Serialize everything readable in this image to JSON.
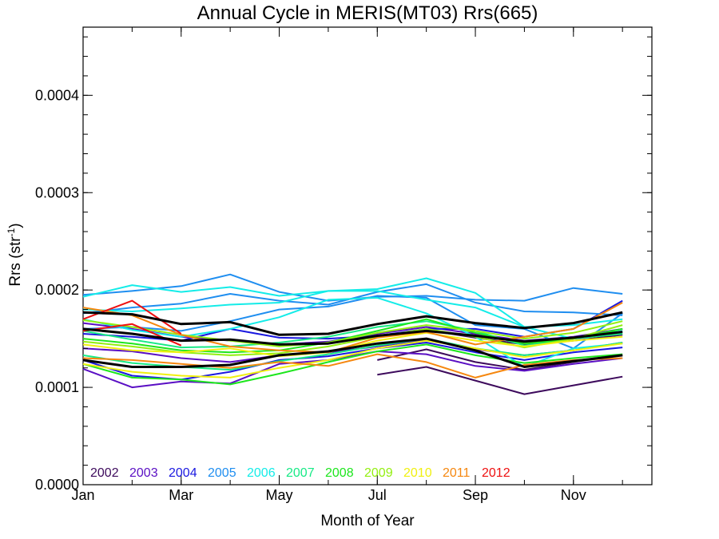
{
  "chart_data": {
    "type": "line",
    "title": "Annual Cycle in MERIS(MT03) Rrs(665)",
    "xlabel": "Month of Year",
    "ylabel": "Rrs (str",
    "ylabel_sup": "-1",
    "ylabel_end": ")",
    "xlim": [
      1,
      12.6
    ],
    "ylim": [
      0,
      0.00047
    ],
    "x_ticks": [
      {
        "value": 1,
        "label": "Jan"
      },
      {
        "value": 3,
        "label": "Mar"
      },
      {
        "value": 5,
        "label": "May"
      },
      {
        "value": 7,
        "label": "Jul"
      },
      {
        "value": 9,
        "label": "Sep"
      },
      {
        "value": 11,
        "label": "Nov"
      }
    ],
    "y_ticks": [
      {
        "value": 0.0,
        "label": "0.0000"
      },
      {
        "value": 0.0001,
        "label": "0.0001"
      },
      {
        "value": 0.0002,
        "label": "0.0002"
      },
      {
        "value": 0.0003,
        "label": "0.0003"
      },
      {
        "value": 0.0004,
        "label": "0.0004"
      }
    ],
    "x": [
      1,
      2,
      3,
      4,
      5,
      6,
      7,
      8,
      9,
      10,
      11,
      12
    ],
    "grid": false,
    "legend_position": "bottom-left",
    "legend": [
      {
        "label": "2002",
        "color": "#3d0a5c"
      },
      {
        "label": "2003",
        "color": "#5a0fc4"
      },
      {
        "label": "2004",
        "color": "#1a18e0"
      },
      {
        "label": "2005",
        "color": "#1f8ef0"
      },
      {
        "label": "2006",
        "color": "#14ece8"
      },
      {
        "label": "2007",
        "color": "#17ea86"
      },
      {
        "label": "2008",
        "color": "#1de61d"
      },
      {
        "label": "2009",
        "color": "#93ef10"
      },
      {
        "label": "2010",
        "color": "#f0f010"
      },
      {
        "label": "2011",
        "color": "#f5870f"
      },
      {
        "label": "2012",
        "color": "#ee1010"
      }
    ],
    "series": [
      {
        "color": "#3d0a5c",
        "values": [
          null,
          null,
          null,
          null,
          null,
          null,
          0.000113,
          0.000121,
          0.000107,
          9.3e-05,
          0.000102,
          0.000111
        ]
      },
      {
        "color": "#3d0a5c",
        "values": [
          null,
          null,
          null,
          null,
          null,
          null,
          0.000128,
          0.000139,
          0.000126,
          0.000118,
          0.000126,
          0.000133
        ]
      },
      {
        "color": "#3d0a5c",
        "values": [
          null,
          null,
          null,
          null,
          null,
          null,
          0.000152,
          0.000159,
          0.000151,
          0.000144,
          0.000148,
          0.000154
        ]
      },
      {
        "color": "#5a0fc4",
        "values": [
          0.000119,
          0.0001,
          0.000106,
          0.000104,
          0.000124,
          0.000128,
          0.000137,
          0.000134,
          0.000122,
          0.000117,
          0.000124,
          0.00013
        ]
      },
      {
        "color": "#5a0fc4",
        "values": [
          0.00014,
          0.000137,
          0.00013,
          0.000126,
          0.000133,
          0.000136,
          0.000142,
          0.000149,
          0.000139,
          0.000133,
          0.000138,
          0.000146
        ]
      },
      {
        "color": "#5a0fc4",
        "values": [
          0.000166,
          0.00016,
          0.000152,
          0.000148,
          0.000144,
          0.000147,
          0.000155,
          0.000162,
          0.000155,
          0.000148,
          0.000152,
          0.00016
        ]
      },
      {
        "color": "#1a18e0",
        "values": [
          0.000128,
          0.000112,
          0.000108,
          0.000116,
          0.000128,
          0.000132,
          0.00014,
          0.000146,
          0.000136,
          0.000128,
          0.000136,
          0.000141
        ]
      },
      {
        "color": "#1a18e0",
        "values": [
          0.000155,
          0.000152,
          0.000148,
          0.00016,
          0.000151,
          0.00015,
          0.000153,
          0.00016,
          0.00016,
          0.000152,
          0.00016,
          0.000189
        ]
      },
      {
        "color": "#1f8ef0",
        "values": [
          0.000195,
          0.000199,
          0.000204,
          0.000216,
          0.000198,
          0.000189,
          0.000193,
          0.000194,
          0.00019,
          0.000189,
          0.000202,
          0.000196
        ]
      },
      {
        "color": "#1f8ef0",
        "values": [
          0.000176,
          0.000182,
          0.000186,
          0.000196,
          0.000189,
          0.000185,
          0.000198,
          0.000206,
          0.000187,
          0.000178,
          0.000177,
          0.000174
        ]
      },
      {
        "color": "#1f8ef0",
        "values": [
          0.00016,
          0.000162,
          0.000158,
          0.000168,
          0.00018,
          0.000183,
          0.000194,
          0.000192,
          0.000164,
          0.00016,
          0.00014,
          0.000176
        ]
      },
      {
        "color": "#14ece8",
        "values": [
          0.000193,
          0.000205,
          0.000198,
          0.000203,
          0.000194,
          0.000199,
          0.000201,
          0.000212,
          0.000197,
          0.000162,
          0.000164,
          0.00017
        ]
      },
      {
        "color": "#14ece8",
        "values": [
          0.00018,
          0.000178,
          0.000181,
          0.000185,
          0.000187,
          0.000199,
          0.000199,
          0.00019,
          0.000182,
          0.000162,
          0.00015,
          0.000158
        ]
      },
      {
        "color": "#14ece8",
        "values": [
          0.00017,
          0.000159,
          0.000152,
          0.00016,
          0.000172,
          0.00019,
          0.000192,
          0.000176,
          0.000152,
          0.000121,
          0.00014,
          0.000145
        ]
      },
      {
        "color": "#17ea86",
        "values": [
          0.000158,
          0.000149,
          0.000141,
          0.000142,
          0.000146,
          0.000152,
          0.000162,
          0.000168,
          0.000158,
          0.000143,
          0.00015,
          0.000155
        ]
      },
      {
        "color": "#17ea86",
        "values": [
          0.000133,
          0.000125,
          0.000121,
          0.000118,
          0.000127,
          0.000134,
          0.000143,
          0.00015,
          0.00014,
          0.000133,
          0.000138,
          0.000146
        ]
      },
      {
        "color": "#1de61d",
        "values": [
          0.00015,
          0.000145,
          0.000138,
          0.000136,
          0.000138,
          0.000146,
          0.000158,
          0.00017,
          0.000156,
          0.000145,
          0.00015,
          0.00016
        ]
      },
      {
        "color": "#1de61d",
        "values": [
          0.000124,
          0.00011,
          0.000108,
          0.000103,
          0.000114,
          0.000126,
          0.000137,
          0.000144,
          0.000133,
          0.000125,
          0.00013,
          0.000134
        ]
      },
      {
        "color": "#93ef10",
        "values": [
          0.000147,
          0.000142,
          0.000136,
          0.000133,
          0.000135,
          0.000142,
          0.000152,
          0.00016,
          0.000152,
          0.000141,
          0.00015,
          0.000164
        ]
      },
      {
        "color": "#93ef10",
        "values": [
          0.000169,
          0.000162,
          0.000154,
          0.000148,
          0.000142,
          0.000146,
          0.000156,
          0.000164,
          0.000158,
          0.00015,
          0.000156,
          0.000168
        ]
      },
      {
        "color": "#f0f010",
        "values": [
          0.000124,
          0.000116,
          0.000112,
          0.00011,
          0.00012,
          0.000128,
          0.00014,
          0.000148,
          0.00014,
          0.000131,
          0.000138,
          0.000145
        ]
      },
      {
        "color": "#f0f010",
        "values": [
          0.000144,
          0.000138,
          0.000136,
          0.00014,
          0.000132,
          0.000136,
          0.000148,
          0.000156,
          0.000148,
          0.000142,
          0.000148,
          0.000152
        ]
      },
      {
        "color": "#f5870f",
        "values": [
          0.000182,
          0.000174,
          0.000154,
          0.000142,
          0.000138,
          0.000136,
          0.000151,
          0.000157,
          0.000144,
          0.000152,
          0.00016,
          0.000187
        ]
      },
      {
        "color": "#f5870f",
        "values": [
          0.00013,
          0.000128,
          0.000124,
          0.00012,
          0.000126,
          0.000122,
          0.000134,
          0.000126,
          0.00011,
          0.000123,
          0.000128,
          0.00013
        ]
      },
      {
        "color": "#ee1010",
        "values": [
          0.00017,
          0.000189,
          0.000155,
          null,
          null,
          null,
          null,
          null,
          null,
          null,
          null,
          null
        ]
      },
      {
        "color": "#ee1010",
        "values": [
          0.000158,
          0.000165,
          0.000143,
          null,
          null,
          null,
          null,
          null,
          null,
          null,
          null,
          null
        ]
      },
      {
        "color": "#000000",
        "width": 3,
        "values": [
          0.000177,
          0.000175,
          0.000165,
          0.000167,
          0.000154,
          0.000155,
          0.000165,
          0.000173,
          0.000166,
          0.000161,
          0.000166,
          0.000177
        ]
      },
      {
        "color": "#000000",
        "width": 3,
        "values": [
          0.00016,
          0.000155,
          0.000148,
          0.000149,
          0.000144,
          0.000145,
          0.000153,
          0.000158,
          0.000153,
          0.000147,
          0.000151,
          0.000157
        ]
      },
      {
        "color": "#000000",
        "width": 3,
        "values": [
          0.000128,
          0.000121,
          0.000121,
          0.000123,
          0.000133,
          0.000137,
          0.000145,
          0.00015,
          0.000138,
          0.000121,
          0.000127,
          0.000133
        ]
      }
    ]
  }
}
